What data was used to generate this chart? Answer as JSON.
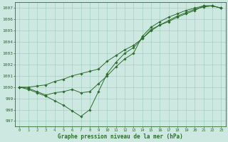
{
  "title": "Graphe pression niveau de la mer (hPa)",
  "xlabel_ticks": [
    0,
    1,
    2,
    3,
    4,
    5,
    6,
    7,
    8,
    9,
    10,
    11,
    12,
    13,
    14,
    15,
    16,
    17,
    18,
    19,
    20,
    21,
    22,
    23
  ],
  "ylim": [
    996.5,
    1007.5
  ],
  "yticks": [
    997,
    998,
    999,
    1000,
    1001,
    1002,
    1003,
    1004,
    1005,
    1006,
    1007
  ],
  "bg_color": "#cce8e0",
  "grid_color": "#99ccbb",
  "line_color": "#2d6e2d",
  "series1": {
    "x": [
      0,
      1,
      2,
      3,
      4,
      5,
      6,
      7,
      8,
      9,
      10,
      11,
      12,
      13,
      14,
      15,
      16,
      17,
      18,
      19,
      20,
      21,
      22,
      23
    ],
    "y": [
      1000.0,
      1000.0,
      1000.1,
      1000.2,
      1000.5,
      1000.7,
      1001.0,
      1001.2,
      1001.4,
      1001.6,
      1002.3,
      1002.8,
      1003.3,
      1003.7,
      1004.3,
      1005.0,
      1005.5,
      1005.9,
      1006.3,
      1006.6,
      1006.9,
      1007.1,
      1007.2,
      1007.0
    ]
  },
  "series2": {
    "x": [
      0,
      1,
      2,
      3,
      4,
      5,
      6,
      7,
      8,
      9,
      10,
      11,
      12,
      13,
      14,
      15,
      16,
      17,
      18,
      19,
      20,
      21,
      22,
      23
    ],
    "y": [
      1000.0,
      999.8,
      999.5,
      999.2,
      998.8,
      998.4,
      997.9,
      997.4,
      998.0,
      999.6,
      1001.2,
      1002.2,
      1003.0,
      1003.5,
      1004.3,
      1005.1,
      1005.5,
      1005.8,
      1006.2,
      1006.5,
      1006.8,
      1007.2,
      1007.2,
      1007.0
    ]
  },
  "series3": {
    "x": [
      0,
      1,
      2,
      3,
      4,
      5,
      6,
      7,
      8,
      9,
      10,
      11,
      12,
      13,
      14,
      15,
      16,
      17,
      18,
      19,
      20,
      21,
      22,
      23
    ],
    "y": [
      1000.0,
      999.9,
      999.6,
      999.3,
      999.5,
      999.6,
      999.8,
      999.5,
      999.6,
      1000.3,
      1001.0,
      1001.8,
      1002.5,
      1003.0,
      1004.5,
      1005.3,
      1005.8,
      1006.2,
      1006.5,
      1006.8,
      1007.0,
      1007.2,
      1007.2,
      1007.0
    ]
  }
}
